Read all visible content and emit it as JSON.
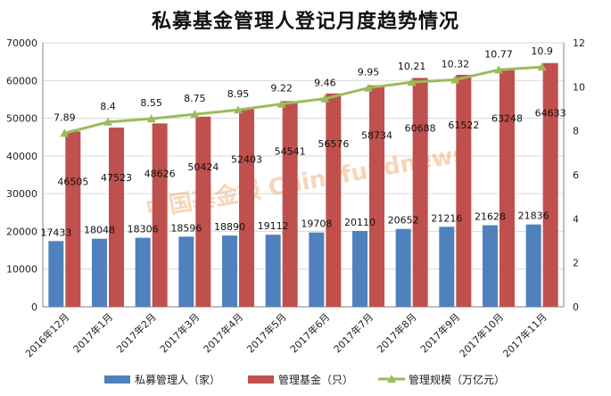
{
  "chart_data": {
    "type": "bar",
    "title": "私募基金管理人登记月度趋势情况",
    "categories": [
      "2016年12月",
      "2017年1月",
      "2017年2月",
      "2017年3月",
      "2017年4月",
      "2017年5月",
      "2017年6月",
      "2017年7月",
      "2017年8月",
      "2017年9月",
      "2017年10月",
      "2017年11月"
    ],
    "series": [
      {
        "name": "私募管理人（家）",
        "type": "bar",
        "axis": "left",
        "color": "#4f81bd",
        "values": [
          17433,
          18048,
          18306,
          18596,
          18890,
          19112,
          19708,
          20110,
          20652,
          21216,
          21628,
          21836
        ]
      },
      {
        "name": "管理基金（只）",
        "type": "bar",
        "axis": "left",
        "color": "#c0504d",
        "values": [
          46505,
          47523,
          48626,
          50424,
          52403,
          54541,
          56576,
          58734,
          60688,
          61522,
          63248,
          64633
        ]
      },
      {
        "name": "管理规模（万亿元）",
        "type": "line",
        "axis": "right",
        "color": "#9bbb59",
        "values": [
          7.89,
          8.4,
          8.55,
          8.75,
          8.95,
          9.22,
          9.46,
          9.95,
          10.21,
          10.32,
          10.77,
          10.9
        ]
      }
    ],
    "ylim": [
      0,
      70000
    ],
    "yticks": [
      0,
      10000,
      20000,
      30000,
      40000,
      50000,
      60000,
      70000
    ],
    "y2lim": [
      0,
      12
    ],
    "y2ticks": [
      0,
      2,
      4,
      6,
      8,
      10,
      12
    ],
    "legend_position": "bottom",
    "watermark": "中国基金报 Chinafundnews"
  }
}
